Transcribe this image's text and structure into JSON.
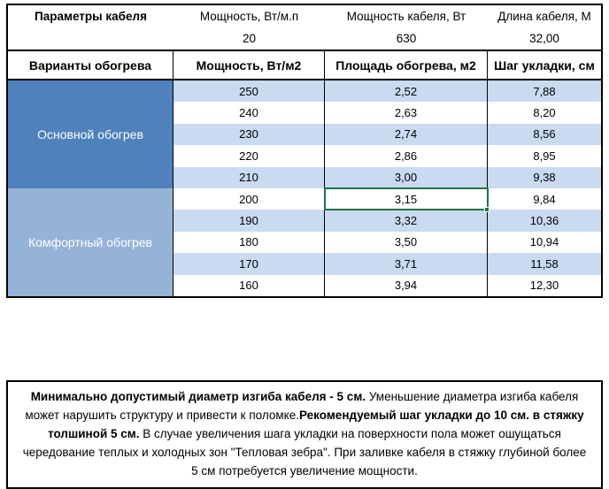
{
  "top_table": {
    "col1_header": "Параметры кабеля",
    "columns": [
      {
        "header": "Мощность, Вт/м.п",
        "value": "20"
      },
      {
        "header": "Мощность кабеля, Вт",
        "value": "630"
      },
      {
        "header": "Длина кабеля, М",
        "value": "32,00"
      }
    ]
  },
  "main_table": {
    "headers": [
      "Варианты обогрева",
      "Мощность, Вт/м2",
      "Площадь обогрева, м2",
      "Шаг укладки, см"
    ],
    "groups": [
      {
        "label": "Основной обогрев",
        "rows": [
          [
            "250",
            "2,52",
            "7,88"
          ],
          [
            "240",
            "2,63",
            "8,20"
          ],
          [
            "230",
            "2,74",
            "8,56"
          ],
          [
            "220",
            "2,86",
            "8,95"
          ],
          [
            "210",
            "3,00",
            "9,38"
          ]
        ]
      },
      {
        "label": "Комфортный обогрев",
        "rows": [
          [
            "200",
            "3,15",
            "9,84"
          ],
          [
            "190",
            "3,32",
            "10,36"
          ],
          [
            "180",
            "3,50",
            "10,94"
          ],
          [
            "170",
            "3,71",
            "11,58"
          ],
          [
            "160",
            "3,94",
            "12,30"
          ]
        ]
      }
    ],
    "selected_cell": {
      "row": "200",
      "column": "Площадь обогрева, м2",
      "value": "3,15"
    }
  },
  "note": {
    "runs": [
      {
        "text": "Минимально допустимый диаметр изгиба кабеля - 5 см.",
        "bold": true
      },
      {
        "text": " Уменьшение диаметра изгиба кабеля может нарушить структуру и привести к поломке.",
        "bold": false
      },
      {
        "text": "Рекомендуемый шаг укладки до 10 см. в стяжку толшиной 5 см.",
        "bold": true
      },
      {
        "text": " В случае увеличения шага укладки на поверхности пола может ошущаться чередование теплых и холодных зон \"Тепловая зебра\". При заливке кабеля в стяжку глубиной более 5 см потребуется увеличение мощности.",
        "bold": false
      }
    ]
  },
  "colors": {
    "primary_section_fill": "#4F81BD",
    "comfort_section_fill": "#95B3D7",
    "stripe_fill": "#C9DAF1",
    "selection_border": "#217346",
    "table_border": "#000000"
  }
}
